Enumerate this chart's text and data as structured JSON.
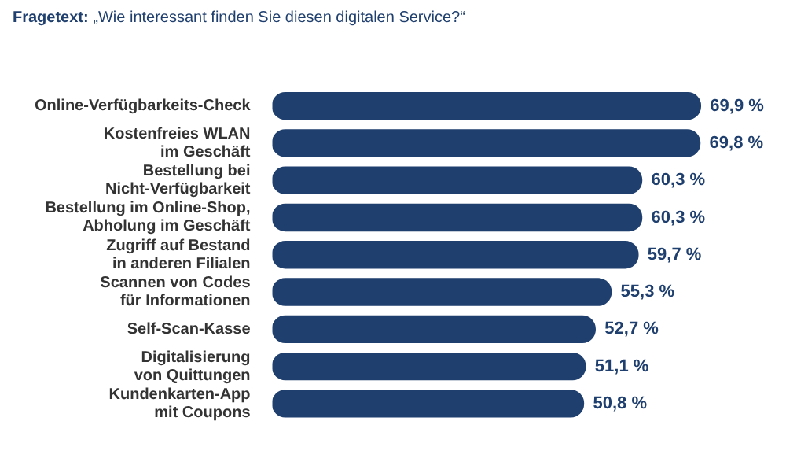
{
  "chart_data": {
    "type": "bar",
    "orientation": "horizontal",
    "title": "Fragetext: „Wie interessant finden Sie diesen digitalen Service?“",
    "categories": [
      "Online-Verfügbarkeits-Check",
      "Kostenfreies WLAN\nim Geschäft",
      "Bestellung bei\nNicht-Verfügbarkeit",
      "Bestellung im Online-Shop,\nAbholung im Geschäft",
      "Zugriff auf Bestand\nin anderen Filialen",
      "Scannen von Codes\nfür Informationen",
      "Self-Scan-Kasse",
      "Digitalisierung\nvon Quittungen",
      "Kundenkarten-App\nmit Coupons"
    ],
    "values": [
      69.9,
      69.8,
      60.3,
      60.3,
      59.7,
      55.3,
      52.7,
      51.1,
      50.8
    ],
    "value_labels": [
      "69,9 %",
      "69,8 %",
      "60,3 %",
      "60,3 %",
      "59,7 %",
      "55,3 %",
      "52,7 %",
      "51,1 %",
      "50,8 %"
    ],
    "color": "#1f3f6e"
  }
}
